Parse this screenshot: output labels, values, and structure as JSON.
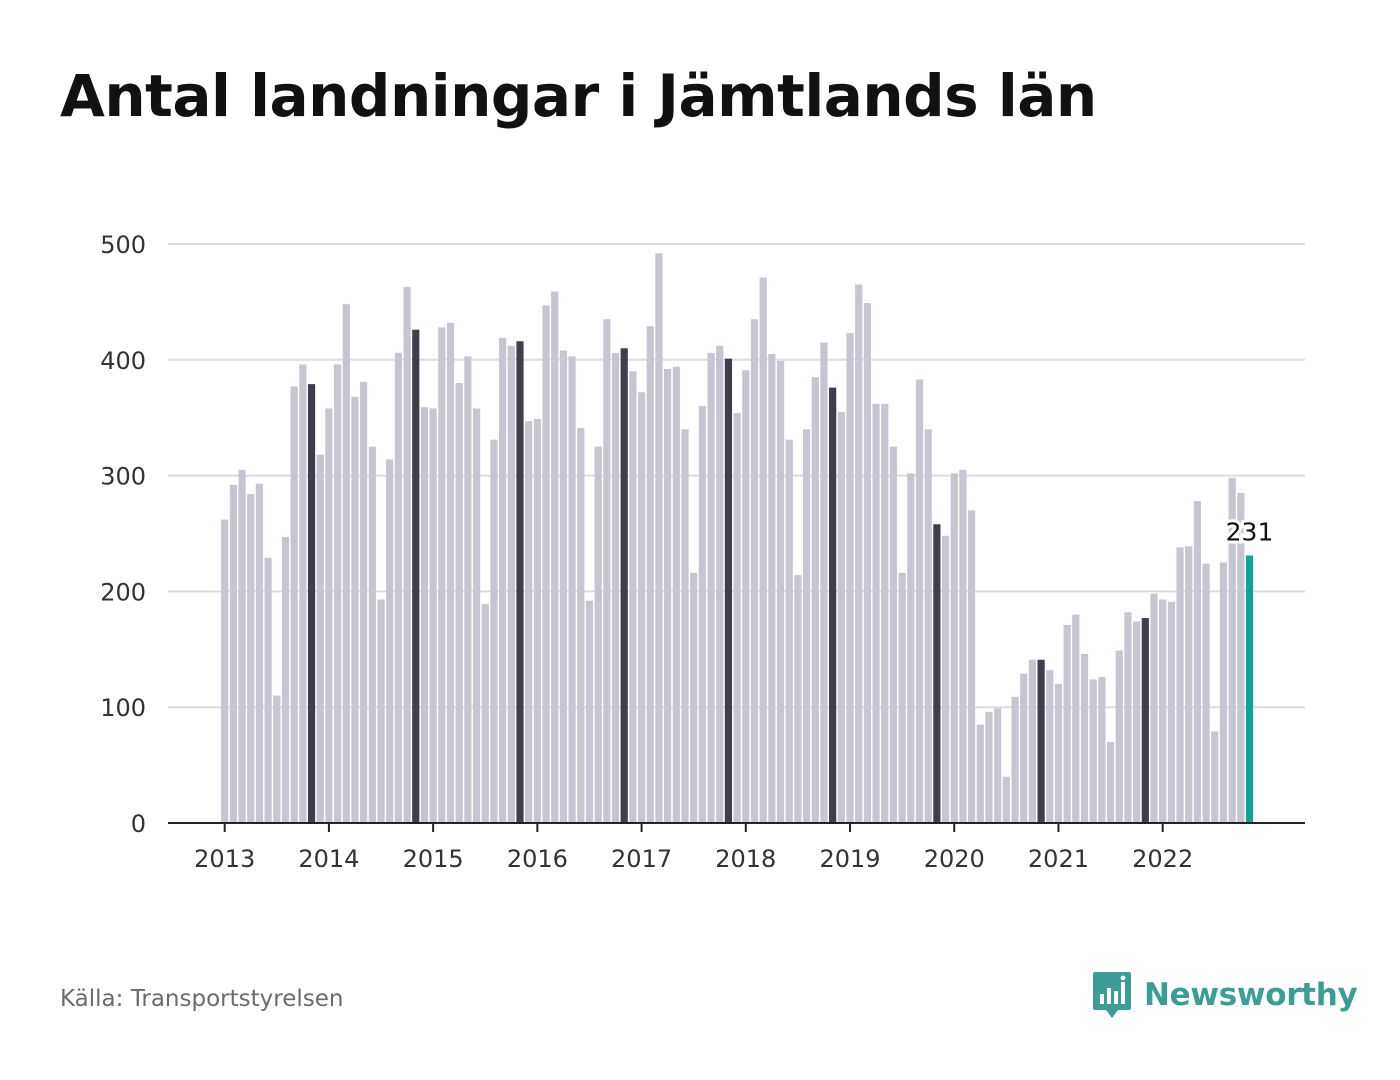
{
  "title": "Antal landningar i Jämtlands län",
  "source": "Källa: Transportstyrelsen",
  "brand": {
    "name": "Newsworthy",
    "logo_icon": "bar-chart-speech-bubble-icon"
  },
  "colors": {
    "bar": "#c6c5d1",
    "highlight_bar": "#3f3e4d",
    "latest_bar": "#10a497",
    "grid": "#dddddd",
    "axis": "#222222",
    "brand": "#3a9e96"
  },
  "chart_data": {
    "type": "bar",
    "title": "Antal landningar i Jämtlands län",
    "xlabel": "",
    "ylabel": "",
    "ylim": [
      0,
      500
    ],
    "yticks": [
      0,
      100,
      200,
      300,
      400,
      500
    ],
    "xticks": [
      "2013",
      "2014",
      "2015",
      "2016",
      "2017",
      "2018",
      "2019",
      "2020",
      "2021",
      "2022"
    ],
    "grid": true,
    "frequency": "monthly",
    "start": "2013-01",
    "highlight": "November of each year shown in dark; latest month (2022-11) in teal",
    "annotation": {
      "text": "231",
      "month": "2022-11"
    },
    "values": [
      262,
      292,
      305,
      284,
      293,
      229,
      110,
      247,
      377,
      396,
      379,
      318,
      358,
      396,
      448,
      368,
      381,
      325,
      193,
      314,
      406,
      463,
      426,
      359,
      358,
      428,
      432,
      380,
      403,
      358,
      189,
      331,
      419,
      412,
      416,
      347,
      349,
      447,
      459,
      408,
      403,
      341,
      192,
      325,
      435,
      406,
      410,
      390,
      372,
      429,
      492,
      392,
      394,
      340,
      216,
      360,
      406,
      412,
      401,
      354,
      391,
      435,
      471,
      405,
      399,
      331,
      214,
      340,
      385,
      415,
      376,
      355,
      423,
      465,
      449,
      362,
      362,
      325,
      216,
      302,
      383,
      340,
      258,
      248,
      302,
      305,
      270,
      85,
      96,
      99,
      40,
      109,
      129,
      141,
      141,
      132,
      120,
      171,
      180,
      146,
      124,
      126,
      70,
      149,
      182,
      174,
      177,
      198,
      193,
      191,
      238,
      239,
      278,
      224,
      79,
      225,
      298,
      285,
      231
    ]
  }
}
